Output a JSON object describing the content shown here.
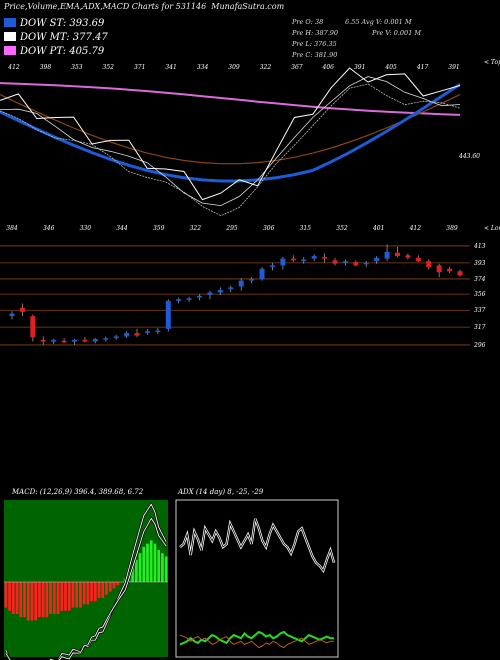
{
  "title": "Price,Volume,EMA,ADX,MACD Charts for 531146",
  "site": "MunafaSutra.com",
  "legend": [
    {
      "label": "DOW ST: 393.69",
      "color": "#1e5bd6"
    },
    {
      "label": "DOW MT: 377.47",
      "color": "#ffffff"
    },
    {
      "label": "DOW PT: 405.79",
      "color": "#ff66ff"
    }
  ],
  "stats": [
    {
      "text": "Pre  O: 38"
    },
    {
      "text": "6.55   Avg V: 0.001 M"
    },
    {
      "text": "Pre  H: 387.90"
    },
    {
      "text": "Pre  V: 0.001 M"
    },
    {
      "text": "Pre  L: 376.35"
    },
    {
      "text": "Pre  C: 381.90"
    }
  ],
  "top_label": "< Tops",
  "low_label": "< Lows",
  "ema_last_label": "443.60",
  "top_tick_labels": [
    "412",
    "398",
    "353",
    "352",
    "371",
    "341",
    "334",
    "309",
    "322",
    "367",
    "406",
    "391",
    "405",
    "417",
    "391"
  ],
  "low_tick_labels": [
    "384",
    "346",
    "330",
    "344",
    "359",
    "322",
    "295",
    "306",
    "315",
    "352",
    "401",
    "412",
    "389"
  ],
  "macd_header": "MACD: (12,26,9) 396.4, 389.68, 6.72",
  "adx_header": "ADX (14 day) 8, -25, -29",
  "colors": {
    "up": "#1e5bd6",
    "down": "#e02020",
    "ema_long": "#d96cd9",
    "ema_mid": "#8b4513",
    "ema_short": "#1e5bd6",
    "price": "#ffffff"
  },
  "chart_data": [
    {
      "type": "line",
      "name": "EMA panel",
      "series": [
        {
          "name": "",
          "values": [
            395,
            392,
            388,
            380,
            372,
            366,
            360,
            352,
            345,
            335,
            325,
            318,
            314,
            318,
            330,
            350,
            372,
            392,
            405,
            415,
            420,
            416,
            410,
            408,
            402,
            400
          ]
        }
      ]
    },
    {
      "type": "candlestick",
      "name": "Price panel",
      "right_axis": [
        413,
        393,
        374,
        356,
        337,
        317,
        296
      ],
      "candles": [
        {
          "o": 330,
          "h": 336,
          "l": 326,
          "c": 333
        },
        {
          "o": 340,
          "h": 345,
          "l": 330,
          "c": 335
        },
        {
          "o": 330,
          "h": 332,
          "l": 300,
          "c": 305
        },
        {
          "o": 302,
          "h": 306,
          "l": 296,
          "c": 300
        },
        {
          "o": 300,
          "h": 303,
          "l": 297,
          "c": 302
        },
        {
          "o": 301,
          "h": 304,
          "l": 298,
          "c": 299
        },
        {
          "o": 300,
          "h": 303,
          "l": 296,
          "c": 302
        },
        {
          "o": 302,
          "h": 305,
          "l": 299,
          "c": 300
        },
        {
          "o": 300,
          "h": 304,
          "l": 298,
          "c": 303
        },
        {
          "o": 303,
          "h": 306,
          "l": 300,
          "c": 304
        },
        {
          "o": 304,
          "h": 308,
          "l": 302,
          "c": 306
        },
        {
          "o": 306,
          "h": 312,
          "l": 304,
          "c": 310
        },
        {
          "o": 310,
          "h": 315,
          "l": 305,
          "c": 307
        },
        {
          "o": 310,
          "h": 315,
          "l": 308,
          "c": 312
        },
        {
          "o": 312,
          "h": 316,
          "l": 309,
          "c": 313
        },
        {
          "o": 315,
          "h": 350,
          "l": 312,
          "c": 348
        },
        {
          "o": 348,
          "h": 352,
          "l": 345,
          "c": 350
        },
        {
          "o": 350,
          "h": 353,
          "l": 347,
          "c": 351
        },
        {
          "o": 352,
          "h": 356,
          "l": 349,
          "c": 354
        },
        {
          "o": 355,
          "h": 360,
          "l": 350,
          "c": 358
        },
        {
          "o": 358,
          "h": 364,
          "l": 355,
          "c": 361
        },
        {
          "o": 362,
          "h": 366,
          "l": 358,
          "c": 364
        },
        {
          "o": 365,
          "h": 375,
          "l": 360,
          "c": 372
        },
        {
          "o": 372,
          "h": 376,
          "l": 369,
          "c": 374
        },
        {
          "o": 374,
          "h": 388,
          "l": 372,
          "c": 386
        },
        {
          "o": 388,
          "h": 393,
          "l": 384,
          "c": 390
        },
        {
          "o": 390,
          "h": 400,
          "l": 385,
          "c": 398
        },
        {
          "o": 398,
          "h": 402,
          "l": 394,
          "c": 396
        },
        {
          "o": 395,
          "h": 400,
          "l": 392,
          "c": 397
        },
        {
          "o": 398,
          "h": 403,
          "l": 395,
          "c": 401
        },
        {
          "o": 400,
          "h": 404,
          "l": 393,
          "c": 398
        },
        {
          "o": 396,
          "h": 399,
          "l": 390,
          "c": 392
        },
        {
          "o": 393,
          "h": 397,
          "l": 390,
          "c": 395
        },
        {
          "o": 394,
          "h": 396,
          "l": 389,
          "c": 390
        },
        {
          "o": 392,
          "h": 395,
          "l": 388,
          "c": 393
        },
        {
          "o": 395,
          "h": 401,
          "l": 392,
          "c": 399
        },
        {
          "o": 398,
          "h": 415,
          "l": 395,
          "c": 406
        },
        {
          "o": 405,
          "h": 412,
          "l": 400,
          "c": 401
        },
        {
          "o": 402,
          "h": 404,
          "l": 397,
          "c": 399
        },
        {
          "o": 399,
          "h": 402,
          "l": 394,
          "c": 395
        },
        {
          "o": 395,
          "h": 397,
          "l": 385,
          "c": 388
        },
        {
          "o": 390,
          "h": 392,
          "l": 376,
          "c": 382
        },
        {
          "o": 386,
          "h": 388,
          "l": 381,
          "c": 383
        },
        {
          "o": 383,
          "h": 385,
          "l": 377,
          "c": 378
        }
      ]
    },
    {
      "type": "bar",
      "name": "MACD",
      "values": [
        -8,
        -9,
        -10,
        -10,
        -11,
        -11,
        -12,
        -12,
        -12,
        -11,
        -11,
        -11,
        -10,
        -10,
        -10,
        -9,
        -9,
        -9,
        -8,
        -8,
        -8,
        -7,
        -7,
        -6,
        -6,
        -5,
        -5,
        -4,
        -3,
        -2,
        -1,
        0,
        1,
        3,
        5,
        7,
        9,
        11,
        12,
        13,
        12,
        10,
        9,
        8
      ]
    },
    {
      "type": "line",
      "name": "ADX",
      "series": [
        {
          "name": "",
          "values": [
            70,
            72,
            78,
            65,
            80,
            75,
            68,
            82,
            78,
            74,
            80,
            76,
            70,
            72,
            85,
            80,
            75,
            70,
            74,
            78,
            72,
            88,
            82,
            74,
            70,
            78,
            84,
            80,
            76,
            72,
            70,
            66,
            72,
            80,
            82,
            76,
            70,
            64,
            60,
            58,
            55,
            62,
            68,
            60
          ]
        },
        {
          "name": "",
          "values": [
            8,
            9,
            10,
            12,
            10,
            9,
            11,
            10,
            12,
            14,
            13,
            11,
            10,
            9,
            12,
            14,
            13,
            12,
            15,
            13,
            12,
            14,
            16,
            15,
            13,
            14,
            12,
            13,
            15,
            16,
            14,
            13,
            12,
            11,
            10,
            12,
            14,
            13,
            12,
            11,
            12,
            13,
            12,
            12
          ]
        },
        {
          "name": "",
          "values": [
            14,
            13,
            12,
            10,
            12,
            13,
            11,
            12,
            10,
            8,
            9,
            11,
            12,
            13,
            10,
            8,
            9,
            10,
            8,
            9,
            10,
            8,
            6,
            7,
            9,
            8,
            10,
            9,
            7,
            6,
            8,
            9,
            10,
            11,
            12,
            10,
            8,
            9,
            10,
            11,
            10,
            9,
            10,
            10
          ]
        }
      ]
    }
  ]
}
